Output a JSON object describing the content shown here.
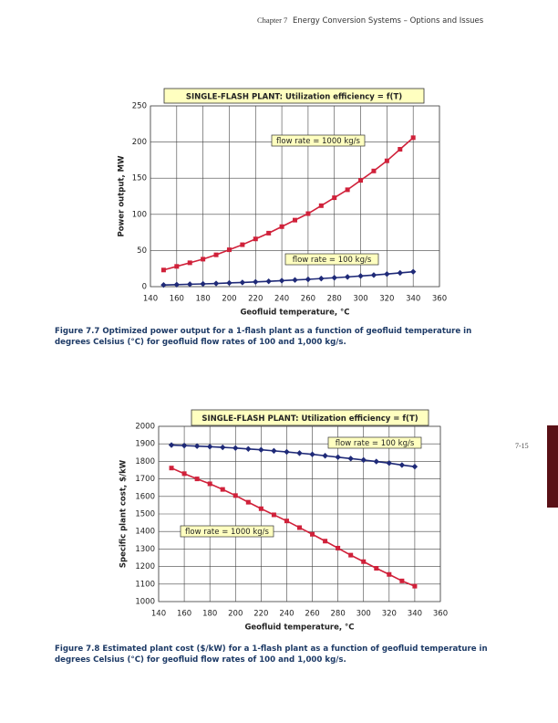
{
  "header": {
    "chapter": "Chapter 7",
    "title": "Energy Conversion Systems – Options and Issues"
  },
  "page_number": "7-15",
  "captions": [
    "Figure 7.7 Optimized power output for a 1-flash plant as a function of geofluid temperature in degrees Celsius (°C) for geofluid flow rates of 100 and 1,000 kg/s.",
    "Figure 7.8 Estimated plant cost ($/kW) for a 1-flash plant as a function of geofluid temperature in degrees Celsius (°C) for geofluid flow rates of 100 and 1,000 kg/s."
  ],
  "chart_data": [
    {
      "type": "line",
      "title": "SINGLE-FLASH PLANT: Utilization efficiency = f(T)",
      "x_label": "Geofluid temperature, °C",
      "y_label": "Power output, MW",
      "x": [
        150,
        160,
        170,
        180,
        190,
        200,
        210,
        220,
        230,
        240,
        250,
        260,
        270,
        280,
        290,
        300,
        310,
        320,
        330,
        340
      ],
      "xlim": [
        140,
        360
      ],
      "xticks": [
        140,
        160,
        180,
        200,
        220,
        240,
        260,
        280,
        300,
        320,
        340,
        360
      ],
      "ylim": [
        0,
        250
      ],
      "yticks": [
        0,
        50,
        100,
        150,
        200,
        250
      ],
      "grid": true,
      "series": [
        {
          "name": "flow rate = 1000 kg/s",
          "color": "#d0213a",
          "marker": "square",
          "values": [
            23,
            28,
            33,
            38,
            44,
            51,
            58,
            66,
            74,
            83,
            92,
            101,
            112,
            123,
            134,
            147,
            160,
            174,
            190,
            206
          ]
        },
        {
          "name": "flow rate = 100 kg/s",
          "color": "#1f2a78",
          "marker": "diamond",
          "values": [
            2.3,
            2.8,
            3.3,
            3.8,
            4.4,
            5.1,
            5.8,
            6.6,
            7.4,
            8.3,
            9.2,
            10.1,
            11.2,
            12.3,
            13.4,
            14.7,
            16,
            17.4,
            19,
            20.6
          ]
        }
      ]
    },
    {
      "type": "line",
      "title": "SINGLE-FLASH PLANT: Utilization efficiency = f(T)",
      "x_label": "Geofluid temperature, °C",
      "y_label": "Specific plant cost, $/kW",
      "x": [
        150,
        160,
        170,
        180,
        190,
        200,
        210,
        220,
        230,
        240,
        250,
        260,
        270,
        280,
        290,
        300,
        310,
        320,
        330,
        340
      ],
      "xlim": [
        140,
        360
      ],
      "xticks": [
        140,
        160,
        180,
        200,
        220,
        240,
        260,
        280,
        300,
        320,
        340,
        360
      ],
      "ylim": [
        1000,
        2000
      ],
      "yticks": [
        1000,
        1100,
        1200,
        1300,
        1400,
        1500,
        1600,
        1700,
        1800,
        1900,
        2000
      ],
      "grid": true,
      "series": [
        {
          "name": "flow rate = 100 kg/s",
          "color": "#1f2a78",
          "marker": "diamond",
          "values": [
            1893,
            1890,
            1887,
            1884,
            1880,
            1876,
            1871,
            1866,
            1860,
            1854,
            1847,
            1840,
            1832,
            1824,
            1816,
            1808,
            1799,
            1790,
            1779,
            1770
          ]
        },
        {
          "name": "flow rate = 1000 kg/s",
          "color": "#d0213a",
          "marker": "square",
          "values": [
            1762,
            1730,
            1700,
            1672,
            1640,
            1605,
            1567,
            1530,
            1495,
            1460,
            1422,
            1384,
            1345,
            1305,
            1265,
            1228,
            1190,
            1155,
            1118,
            1088
          ]
        }
      ]
    }
  ]
}
